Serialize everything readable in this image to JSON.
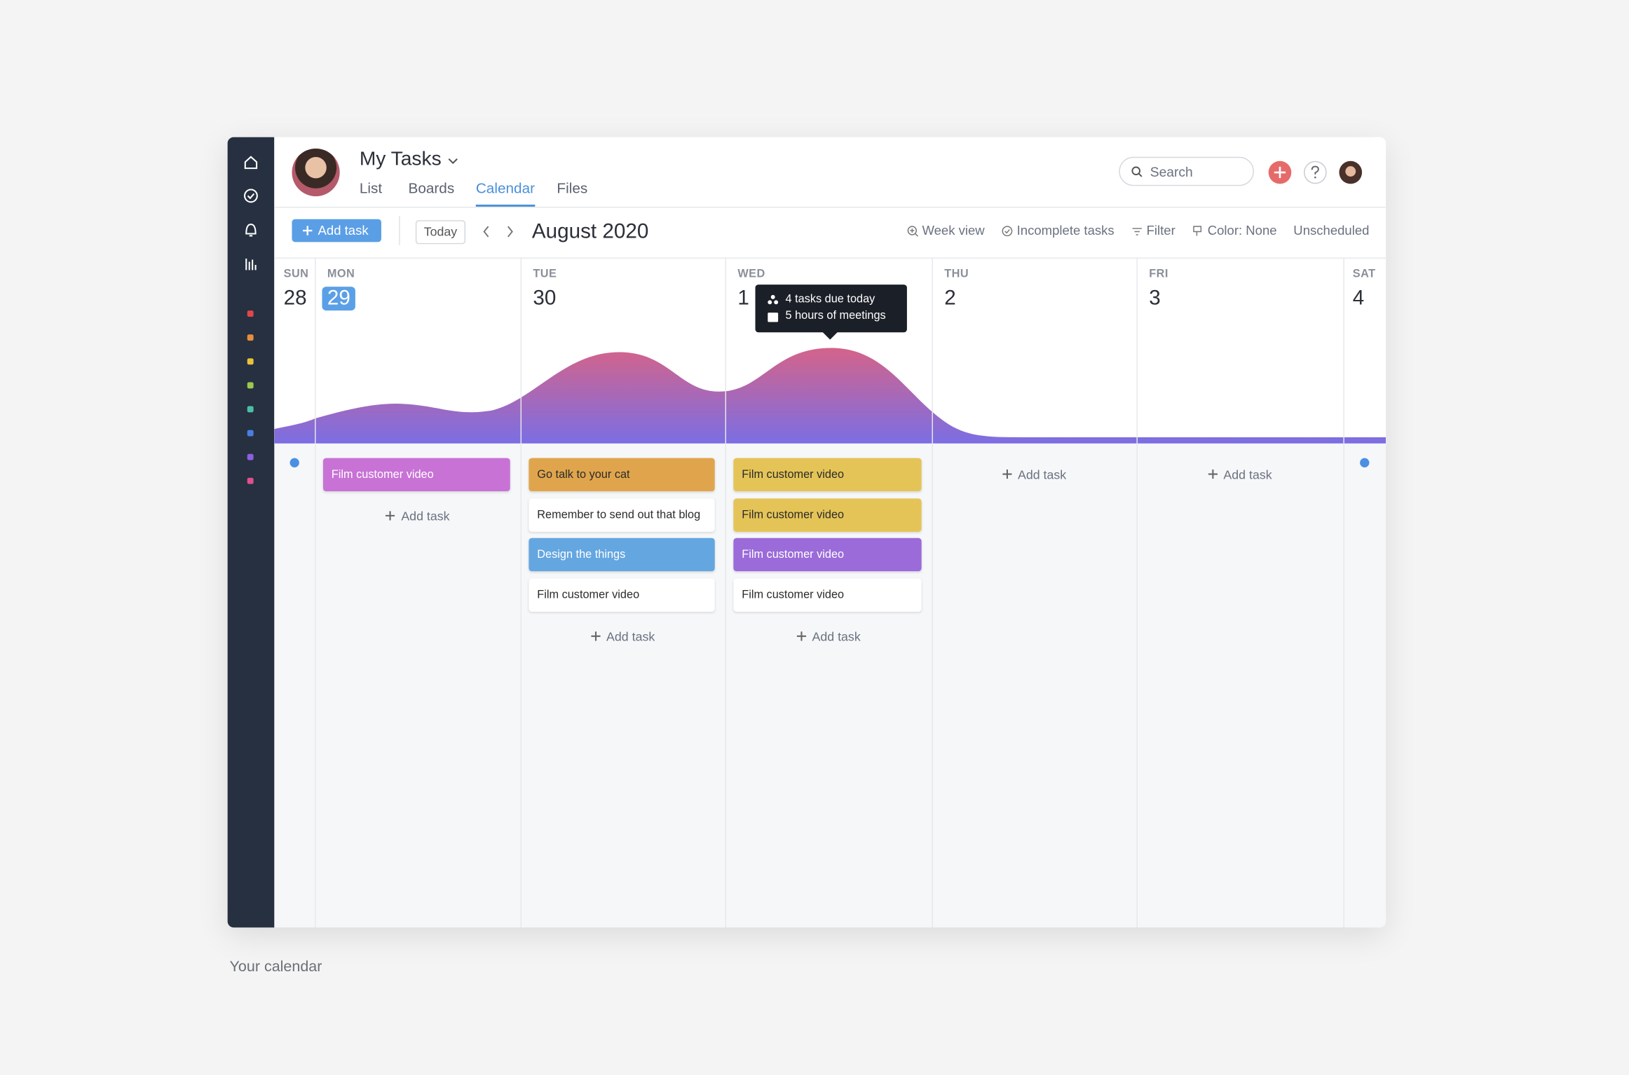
{
  "header": {
    "title": "My Tasks",
    "tabs": [
      "List",
      "Boards",
      "Calendar",
      "Files"
    ],
    "active_tab": 2,
    "search": "Search"
  },
  "toolbar": {
    "add_task": "Add task",
    "today": "Today",
    "month": "August 2020",
    "options": [
      "Week view",
      "Incomplete tasks",
      "Filter",
      "Color: None",
      "Unscheduled"
    ]
  },
  "column_add_task": "Add task",
  "days": [
    {
      "weekday": "SUN",
      "date": "28",
      "highlighted": false,
      "dot": true,
      "add_task": false,
      "tasks": []
    },
    {
      "weekday": "MON",
      "date": "29",
      "highlighted": true,
      "dot": false,
      "add_task": true,
      "tasks": [
        {
          "text": "Film customer video",
          "color": "#c872d6",
          "text_color": "#ffffff"
        }
      ]
    },
    {
      "weekday": "TUE",
      "date": "30",
      "highlighted": false,
      "dot": false,
      "add_task": true,
      "tasks": [
        {
          "text": "Go talk to your cat",
          "color": "#e0a54c",
          "text_color": "#2b2b2b"
        },
        {
          "text": "Remember to send out that blog",
          "color": "#ffffff",
          "text_color": "#2b2b2b"
        },
        {
          "text": "Design the things",
          "color": "#64a6e0",
          "text_color": "#ffffff"
        },
        {
          "text": "Film customer video",
          "color": "#ffffff",
          "text_color": "#2b2b2b"
        }
      ]
    },
    {
      "weekday": "WED",
      "date": "1",
      "highlighted": false,
      "dot": false,
      "add_task": true,
      "tasks": [
        {
          "text": "Film customer video",
          "color": "#e5c457",
          "text_color": "#2b2b2b"
        },
        {
          "text": "Film customer video",
          "color": "#e5c457",
          "text_color": "#2b2b2b"
        },
        {
          "text": "Film customer video",
          "color": "#9a6bd9",
          "text_color": "#ffffff"
        },
        {
          "text": "Film customer video",
          "color": "#ffffff",
          "text_color": "#2b2b2b"
        }
      ]
    },
    {
      "weekday": "THU",
      "date": "2",
      "highlighted": false,
      "dot": false,
      "add_task": true,
      "tasks": []
    },
    {
      "weekday": "FRI",
      "date": "3",
      "highlighted": false,
      "dot": false,
      "add_task": true,
      "tasks": []
    },
    {
      "weekday": "SAT",
      "date": "4",
      "highlighted": false,
      "dot": true,
      "add_task": false,
      "tasks": []
    }
  ],
  "tooltip": [
    "4 tasks due today",
    "5 hours of meetings"
  ],
  "caption": "Your calendar"
}
